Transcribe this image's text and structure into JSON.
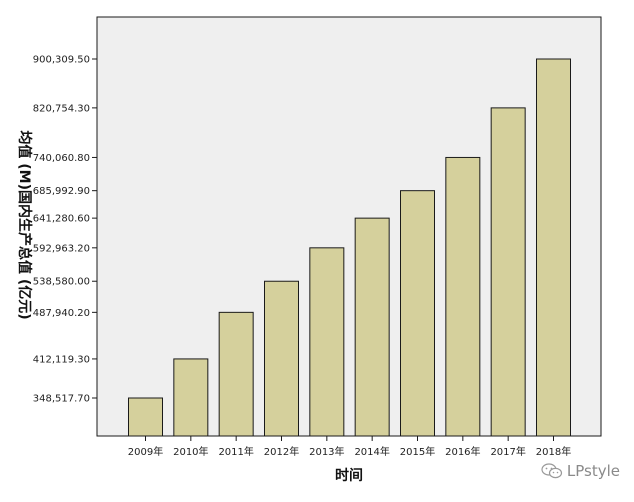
{
  "chart_data": {
    "type": "bar",
    "title": "",
    "xlabel": "时间",
    "ylabel": "均值 (M)国内生产总值 (亿元)",
    "categories": [
      "2009年",
      "2010年",
      "2011年",
      "2012年",
      "2013年",
      "2014年",
      "2015年",
      "2016年",
      "2017年",
      "2018年"
    ],
    "values": [
      348517.7,
      412119.3,
      487940.2,
      538580.0,
      592963.2,
      641280.6,
      685992.9,
      740060.8,
      820754.3,
      900309.5
    ],
    "value_labels": [
      "348,517.70",
      "412,119.30",
      "487,940.20",
      "538,580.00",
      "592,963.20",
      "641,280.60",
      "685,992.90",
      "740,060.80",
      "820,754.30",
      "900,309.50"
    ],
    "grid": false,
    "legend": "none",
    "colors": {
      "bar_fill": "#d5d09c",
      "bar_stroke": "#1a1a1a",
      "plot_background": "#efefef",
      "axis": "#1a1a1a"
    }
  },
  "watermark": {
    "text": "LPstyle",
    "icon": "wechat-icon"
  }
}
